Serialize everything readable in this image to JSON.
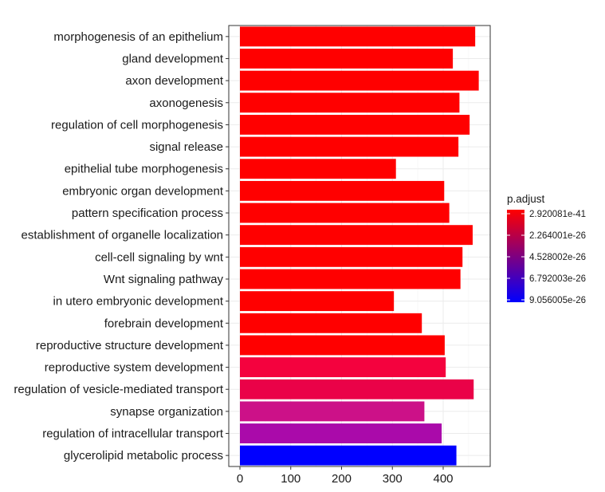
{
  "chart_data": {
    "type": "bar",
    "orientation": "horizontal",
    "categories": [
      "morphogenesis of an epithelium",
      "gland development",
      "axon development",
      "axonogenesis",
      "regulation of cell morphogenesis",
      "signal release",
      "epithelial tube morphogenesis",
      "embryonic organ development",
      "pattern specification process",
      "establishment of organelle localization",
      "cell-cell signaling by wnt",
      "Wnt signaling pathway",
      "in utero embryonic development",
      "forebrain development",
      "reproductive structure development",
      "reproductive system development",
      "regulation of vesicle-mediated transport",
      "synapse organization",
      "regulation of intracellular transport",
      "glycerolipid metabolic process"
    ],
    "values": [
      463,
      419,
      470,
      432,
      452,
      430,
      307,
      402,
      412,
      458,
      438,
      434,
      303,
      358,
      403,
      405,
      460,
      363,
      397,
      426
    ],
    "colors": [
      "#FF0000",
      "#FF0000",
      "#FF0000",
      "#FF0000",
      "#FF0000",
      "#FF0000",
      "#FF0000",
      "#FF0000",
      "#FF0000",
      "#FF0000",
      "#FF0000",
      "#FF0000",
      "#FF0000",
      "#FF0000",
      "#FF0000",
      "#F4023E",
      "#EA0248",
      "#CC1188",
      "#AA0AAA",
      "#0000FF"
    ],
    "xlim": [
      0,
      490
    ],
    "xticks": [
      "0",
      "100",
      "200",
      "300",
      "400"
    ],
    "grid": true,
    "legend": {
      "title": "p.adjust",
      "placement": "right",
      "labels": [
        "2.920081e-41",
        "2.264001e-26",
        "4.528002e-26",
        "6.792003e-26",
        "9.056005e-26"
      ],
      "gradient_top": "#FF0000",
      "gradient_bottom": "#0000FF"
    }
  }
}
